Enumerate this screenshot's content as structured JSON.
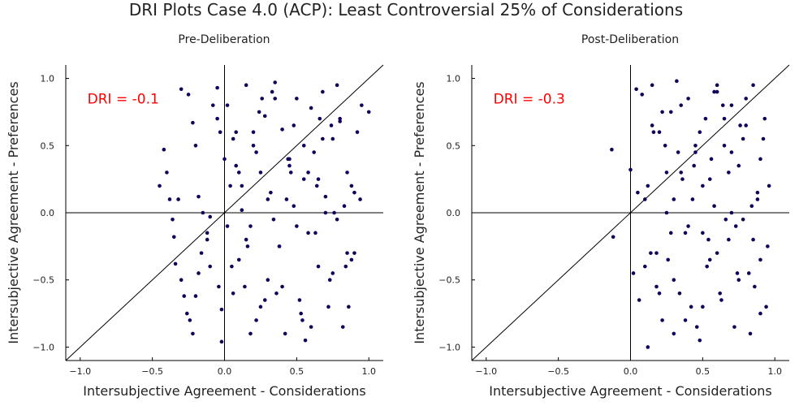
{
  "title": "DRI Plots Case 4.0 (ACP): Least Controversial 25% of Considerations",
  "colors": {
    "point": "#14005a",
    "annotation": "#ff0000",
    "axis": "#000000"
  },
  "chart_data": [
    {
      "type": "scatter",
      "title": "Pre-Deliberation",
      "xlabel": "Intersubjective Agreement - Considerations",
      "ylabel": "Intersubjective Agreement - Preferences",
      "xlim": [
        -1.1,
        1.1
      ],
      "ylim": [
        -1.1,
        1.1
      ],
      "xticks": [
        -1.0,
        -0.5,
        0.0,
        0.5,
        1.0
      ],
      "yticks": [
        -1.0,
        -0.5,
        0.0,
        0.5,
        1.0
      ],
      "xtick_labels": [
        "−1.0",
        "−0.5",
        "0.0",
        "0.5",
        "1.0"
      ],
      "ytick_labels": [
        "−1.0",
        "−0.5",
        "0.0",
        "0.5",
        "1.0"
      ],
      "annotation": "DRI = -0.1",
      "reference_lines": [
        "y = x",
        "x = 0",
        "y = 0"
      ],
      "grid": false,
      "legend": "none",
      "x": [
        -0.42,
        -0.4,
        -0.45,
        -0.32,
        -0.3,
        -0.25,
        -0.22,
        -0.2,
        -0.18,
        -0.15,
        -0.12,
        -0.1,
        -0.05,
        -0.03,
        -0.38,
        -0.36,
        -0.35,
        -0.34,
        -0.3,
        -0.28,
        -0.26,
        -0.24,
        -0.22,
        -0.2,
        -0.18,
        -0.16,
        -0.12,
        -0.1,
        -0.08,
        -0.05,
        -0.04,
        -0.02,
        -0.02,
        0.0,
        0.02,
        0.04,
        0.06,
        0.08,
        0.1,
        0.12,
        0.15,
        0.18,
        0.2,
        0.22,
        0.25,
        0.28,
        0.3,
        0.32,
        0.35,
        0.38,
        0.4,
        0.42,
        0.45,
        0.48,
        0.5,
        0.52,
        0.55,
        0.58,
        0.6,
        0.62,
        0.65,
        0.68,
        0.7,
        0.72,
        0.75,
        0.78,
        0.8,
        0.82,
        0.85,
        0.88,
        0.9,
        0.92,
        0.95,
        1.0,
        0.05,
        0.1,
        0.15,
        0.2,
        0.25,
        0.3,
        0.35,
        0.4,
        0.45,
        0.5,
        0.55,
        0.6,
        0.65,
        0.7,
        0.75,
        0.8,
        0.85,
        0.9,
        0.12,
        0.18,
        0.22,
        0.28,
        0.33,
        0.38,
        0.43,
        0.48,
        0.53,
        0.58,
        0.63,
        0.68,
        0.73,
        0.78,
        0.83,
        0.88,
        0.02,
        0.08,
        0.14,
        0.24,
        0.34,
        0.44,
        0.54,
        0.64,
        0.74,
        0.84,
        0.94,
        0.06,
        0.16,
        0.26,
        0.36,
        0.46,
        0.56,
        0.66,
        0.76,
        0.86
      ],
      "y": [
        0.47,
        0.3,
        0.2,
        0.1,
        0.92,
        0.88,
        0.67,
        0.5,
        0.12,
        0.0,
        -0.2,
        -0.4,
        0.93,
        0.6,
        0.1,
        -0.05,
        -0.18,
        -0.38,
        -0.5,
        -0.62,
        -0.75,
        -0.8,
        -0.9,
        -0.62,
        -0.45,
        -0.3,
        -0.15,
        -0.03,
        0.8,
        0.7,
        -0.55,
        -0.72,
        -0.96,
        0.4,
        0.8,
        0.2,
        -0.6,
        0.6,
        -0.35,
        0.02,
        0.95,
        -0.1,
        0.5,
        -0.8,
        0.3,
        0.72,
        -0.5,
        0.15,
        0.97,
        -0.25,
        0.62,
        -0.9,
        0.4,
        0.05,
        0.85,
        -0.65,
        0.25,
        -0.15,
        0.78,
        0.45,
        -0.4,
        0.9,
        0.12,
        -0.7,
        0.55,
        -0.05,
        0.68,
        -0.85,
        0.3,
        0.2,
        -0.3,
        0.6,
        0.8,
        0.75,
        -0.4,
        0.3,
        -0.2,
        0.6,
        -0.7,
        0.1,
        0.85,
        -0.55,
        0.35,
        -0.1,
        0.5,
        -0.85,
        0.25,
        0.0,
        -0.45,
        0.7,
        -0.3,
        0.15,
        0.2,
        -0.9,
        0.45,
        -0.65,
        0.9,
        -0.25,
        0.1,
        0.65,
        -0.75,
        0.3,
        -0.15,
        0.55,
        -0.5,
        0.95,
        0.05,
        -0.35,
        -0.1,
        0.35,
        -0.55,
        0.75,
        -0.05,
        0.4,
        -0.8,
        0.2,
        0.65,
        -0.4,
        0.1,
        0.55,
        -0.25,
        0.85,
        -0.6,
        0.3,
        -0.95,
        0.7,
        0.0,
        -0.7
      ]
    },
    {
      "type": "scatter",
      "title": "Post-Deliberation",
      "xlabel": "Intersubjective Agreement - Considerations",
      "ylabel": "Intersubjective Agreement - Preferences",
      "xlim": [
        -1.1,
        1.1
      ],
      "ylim": [
        -1.1,
        1.1
      ],
      "xticks": [
        -1.0,
        -0.5,
        0.0,
        0.5,
        1.0
      ],
      "yticks": [
        -1.0,
        -0.5,
        0.0,
        0.5,
        1.0
      ],
      "xtick_labels": [
        "−1.0",
        "−0.5",
        "0.0",
        "0.5",
        "1.0"
      ],
      "ytick_labels": [
        "−1.0",
        "−0.5",
        "0.0",
        "0.5",
        "1.0"
      ],
      "annotation": "DRI = -0.3",
      "reference_lines": [
        "y = x",
        "x = 0",
        "y = 0"
      ],
      "grid": false,
      "legend": "none",
      "x": [
        -0.13,
        -0.12,
        0.0,
        0.02,
        0.04,
        0.06,
        0.08,
        0.1,
        0.12,
        0.15,
        0.18,
        0.2,
        0.22,
        0.25,
        0.28,
        0.3,
        0.32,
        0.35,
        0.38,
        0.4,
        0.42,
        0.45,
        0.48,
        0.5,
        0.52,
        0.55,
        0.58,
        0.6,
        0.62,
        0.65,
        0.68,
        0.7,
        0.72,
        0.75,
        0.78,
        0.8,
        0.82,
        0.85,
        0.88,
        0.9,
        0.92,
        0.95,
        0.05,
        0.1,
        0.15,
        0.2,
        0.25,
        0.3,
        0.35,
        0.4,
        0.45,
        0.5,
        0.55,
        0.6,
        0.65,
        0.7,
        0.75,
        0.8,
        0.85,
        0.9,
        0.12,
        0.18,
        0.22,
        0.28,
        0.33,
        0.38,
        0.43,
        0.48,
        0.53,
        0.58,
        0.63,
        0.68,
        0.73,
        0.78,
        0.83,
        0.88,
        0.93,
        0.14,
        0.24,
        0.34,
        0.44,
        0.54,
        0.64,
        0.74,
        0.84,
        0.94,
        0.16,
        0.26,
        0.36,
        0.46,
        0.56,
        0.66,
        0.76,
        0.86,
        0.96,
        0.3,
        0.5,
        0.7,
        0.9,
        0.6
      ],
      "y": [
        0.47,
        -0.18,
        0.32,
        -0.45,
        0.92,
        -0.65,
        0.88,
        0.1,
        -1.0,
        0.95,
        -0.3,
        0.6,
        -0.8,
        0.0,
        0.75,
        -0.5,
        0.98,
        0.3,
        -0.15,
        0.85,
        -0.7,
        0.45,
        -0.95,
        0.2,
        0.7,
        -0.35,
        0.05,
        0.9,
        -0.6,
        0.5,
        -0.2,
        0.8,
        -0.85,
        0.35,
        -0.05,
        0.65,
        -0.45,
        0.95,
        0.1,
        -0.75,
        0.55,
        -0.25,
        0.15,
        -0.4,
        0.65,
        -0.6,
        0.3,
        -0.9,
        0.8,
        -0.1,
        0.5,
        -0.7,
        0.25,
        -0.3,
        0.7,
        0.0,
        -0.5,
        0.85,
        -0.2,
        0.4,
        0.2,
        -0.55,
        0.75,
        -0.15,
        0.45,
        -0.8,
        0.1,
        0.6,
        -0.4,
        0.9,
        -0.65,
        0.3,
        -0.1,
        0.55,
        -0.9,
        0.15,
        0.7,
        -0.3,
        0.5,
        -0.6,
        0.35,
        -0.2,
        0.8,
        -0.45,
        0.05,
        -0.7,
        0.6,
        -0.35,
        0.25,
        -0.85,
        0.4,
        -0.05,
        0.65,
        -0.55,
        0.2,
        0.1,
        -0.15,
        0.45,
        -0.35,
        0.95
      ]
    }
  ]
}
